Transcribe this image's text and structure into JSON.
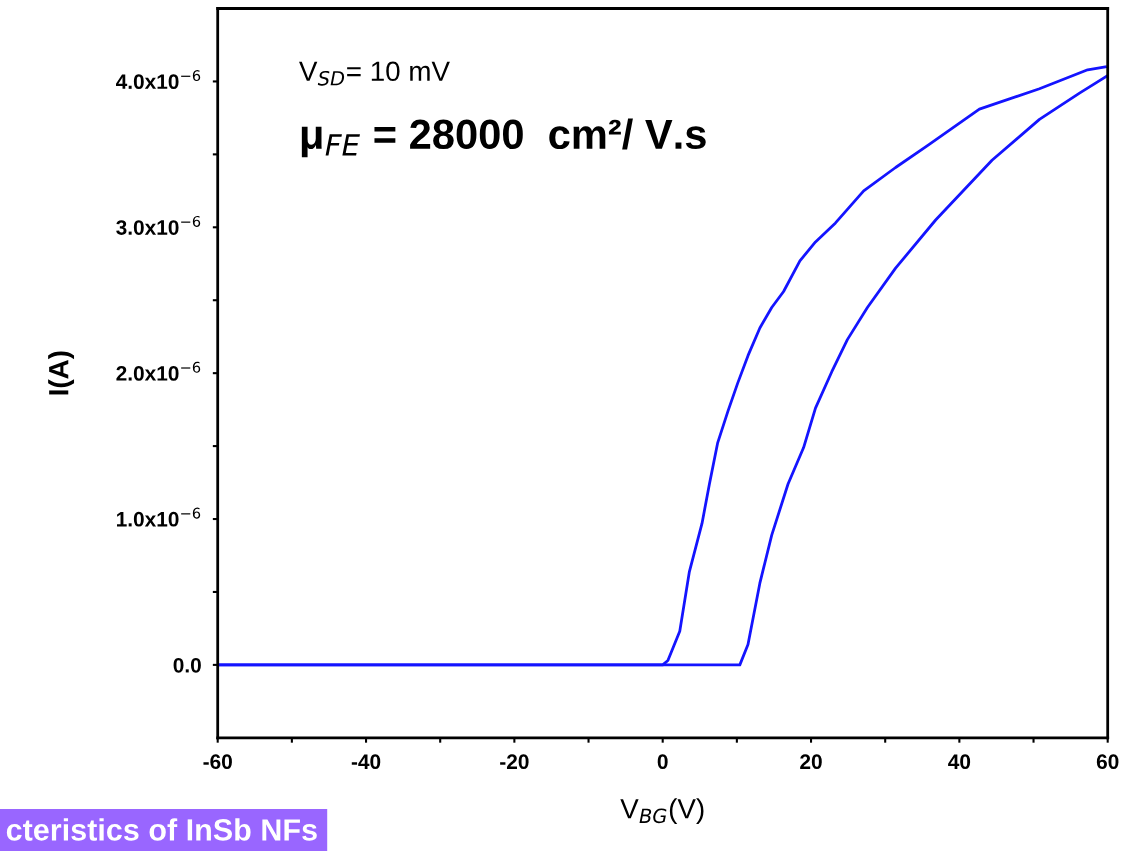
{
  "chart_data": {
    "type": "line",
    "xlabel": "V$_{BG}$(V)",
    "ylabel": "I(A)",
    "annotations": [
      "V$_{SD}$= 10 mV",
      "μ$_{FE}$ = 28000  cm²/ V.s",
      "cteristics of InSb NFs"
    ],
    "xlim": [
      -60,
      60
    ],
    "ylim": [
      -5e-07,
      4.5e-06
    ],
    "xticks": [
      -60,
      {
        "value": -50,
        "label": null
      },
      -40,
      {
        "value": -30,
        "label": null
      },
      -20,
      {
        "value": -10,
        "label": null
      },
      0,
      {
        "value": 10,
        "label": null
      },
      20,
      {
        "value": 30,
        "label": null
      },
      40,
      {
        "value": 50,
        "label": null
      },
      60
    ],
    "yticks": [
      {
        "value": 0,
        "label": "0.0"
      },
      {
        "value": 5e-07,
        "label": null
      },
      {
        "value": 1e-06,
        "label": "1.0x10$^{−6}$"
      },
      {
        "value": 1.5e-06,
        "label": null
      },
      {
        "value": 2e-06,
        "label": "2.0x10$^{−6}$"
      },
      {
        "value": 2.5e-06,
        "label": null
      },
      {
        "value": 3e-06,
        "label": "3.0x10$^{−6}$"
      },
      {
        "value": 3.5e-06,
        "label": null
      },
      {
        "value": 4e-06,
        "label": "4.0x10$^{−6}$"
      }
    ],
    "grid": false,
    "marker": "none",
    "line_style": "solid",
    "series": [
      {
        "color": "#1414ff",
        "x": [
          -60,
          0,
          0.7,
          2.3,
          3.6,
          5.3,
          6.3,
          7.4,
          8.8,
          10.1,
          11.5,
          13.1,
          14.7,
          16.3,
          18.5,
          20.6,
          23.3,
          27.1,
          31.4,
          35.7,
          42.7,
          50.8,
          57.3,
          59.7
        ],
        "values": [
          0,
          0,
          3e-08,
          2.3e-07,
          6.4e-07,
          9.7e-07,
          1.24e-06,
          1.52e-06,
          1.74e-06,
          1.93e-06,
          2.12e-06,
          2.31e-06,
          2.45e-06,
          2.56e-06,
          2.77e-06,
          2.9e-06,
          3.03e-06,
          3.25e-06,
          3.41e-06,
          3.56e-06,
          3.81e-06,
          3.95e-06,
          4.08e-06,
          4.1e-06
        ]
      },
      {
        "color": "#1414ff",
        "x": [
          -60,
          10.4,
          11.5,
          13.1,
          14.7,
          16.9,
          19.0,
          20.6,
          22.8,
          24.9,
          27.6,
          31.4,
          36.8,
          44.4,
          50.8,
          56.2,
          60
        ],
        "values": [
          0,
          0,
          1.4e-07,
          5.6e-07,
          8.9e-07,
          1.24e-06,
          1.49e-06,
          1.76e-06,
          2.01e-06,
          2.23e-06,
          2.45e-06,
          2.72e-06,
          3.05e-06,
          3.46e-06,
          3.74e-06,
          3.92e-06,
          4.04e-06
        ]
      }
    ]
  }
}
